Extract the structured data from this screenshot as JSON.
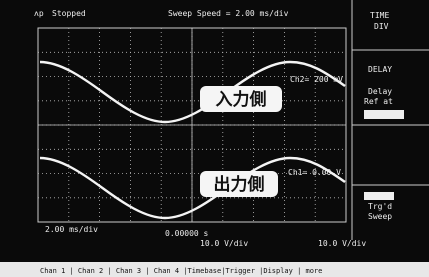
{
  "status": {
    "state": "Stopped",
    "sweep_speed": "Sweep Speed = 2.00 ms/div"
  },
  "menu": [
    {
      "lines": [
        "TIME",
        "DIV"
      ]
    },
    {
      "lines": [
        "DELAY"
      ]
    },
    {
      "lines": [
        "Delay",
        "Ref at"
      ]
    },
    {
      "lines": [
        "Trg'd",
        "Sweep"
      ]
    }
  ],
  "channels": [
    {
      "caption": "入力側",
      "scale": "Ch2= 200 mV"
    },
    {
      "caption": "出力側",
      "scale": "Ch1= 0.00 V"
    }
  ],
  "readouts": {
    "timebase": "2.00 ms/div",
    "delay": "0.00000 s",
    "ch1_volts": "10.0 V/div",
    "ch2_volts": "10.0 V/div"
  },
  "softkeys": "Chan 1 | Chan 2 | Chan 3 | Chan 4 |Timebase|Trigger |Display | more"
}
